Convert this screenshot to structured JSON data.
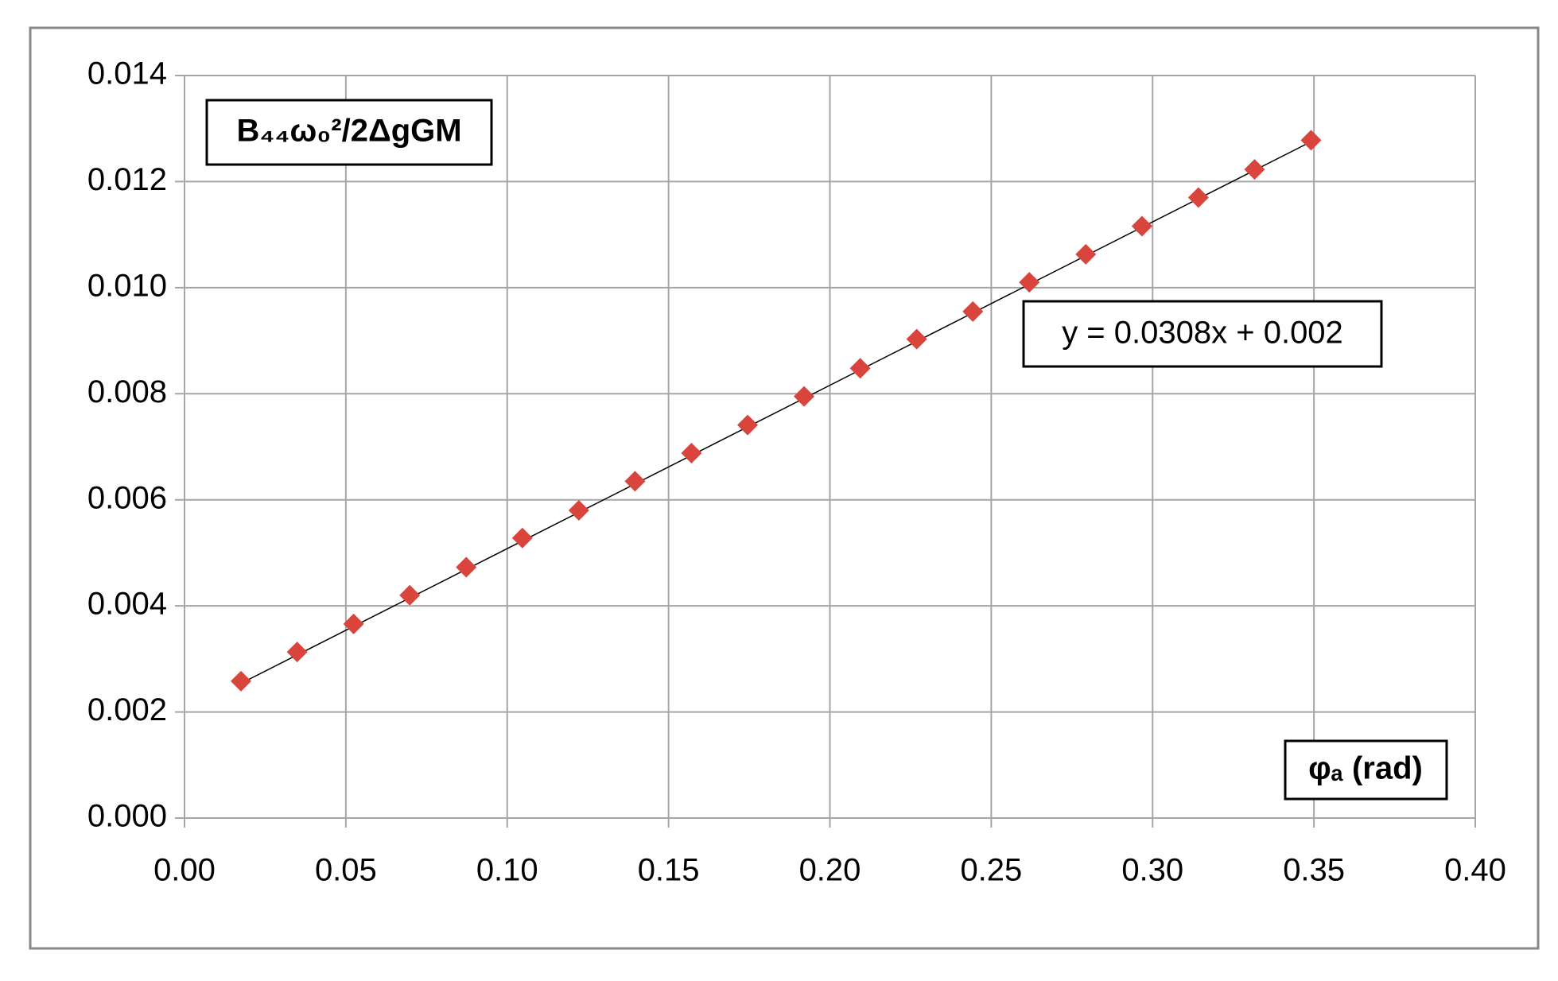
{
  "chart_data": {
    "type": "scatter",
    "x_label": "φₐ (rad)",
    "y_label": "B₄₄ω₀²/2ΔgGM",
    "x": [
      0.0175,
      0.0349,
      0.0524,
      0.0698,
      0.0873,
      0.1047,
      0.1222,
      0.1396,
      0.1571,
      0.1745,
      0.192,
      0.2094,
      0.2269,
      0.2443,
      0.2618,
      0.2793,
      0.2967,
      0.3142,
      0.3316,
      0.3491
    ],
    "series": [
      {
        "color": "#d9453c",
        "values": [
          0.00258,
          0.00313,
          0.00366,
          0.0042,
          0.00473,
          0.00528,
          0.0058,
          0.00635,
          0.00688,
          0.00741,
          0.00795,
          0.00848,
          0.00903,
          0.00955,
          0.0101,
          0.01063,
          0.01116,
          0.0117,
          0.01223,
          0.01278
        ]
      }
    ],
    "trendline": {
      "slope": 0.0308,
      "intercept": 0.002,
      "label": "y = 0.0308x + 0.002"
    },
    "xlim": [
      0,
      0.4
    ],
    "xticks": [
      {
        "value": 0,
        "label": "0.00"
      },
      {
        "value": 0.05,
        "label": "0.05"
      },
      {
        "value": 0.1,
        "label": "0.10"
      },
      {
        "value": 0.15,
        "label": "0.15"
      },
      {
        "value": 0.2,
        "label": "0.20"
      },
      {
        "value": 0.25,
        "label": "0.25"
      },
      {
        "value": 0.3,
        "label": "0.30"
      },
      {
        "value": 0.35,
        "label": "0.35"
      },
      {
        "value": 0.4,
        "label": "0.40"
      }
    ],
    "ylim": [
      0,
      0.014
    ],
    "yticks": [
      {
        "value": 0,
        "label": "0.000"
      },
      {
        "value": 0.002,
        "label": "0.002"
      },
      {
        "value": 0.004,
        "label": "0.004"
      },
      {
        "value": 0.006,
        "label": "0.006"
      },
      {
        "value": 0.008,
        "label": "0.008"
      },
      {
        "value": 0.01,
        "label": "0.010"
      },
      {
        "value": 0.012,
        "label": "0.012"
      },
      {
        "value": 0.014,
        "label": "0.014"
      }
    ],
    "grid": true
  }
}
